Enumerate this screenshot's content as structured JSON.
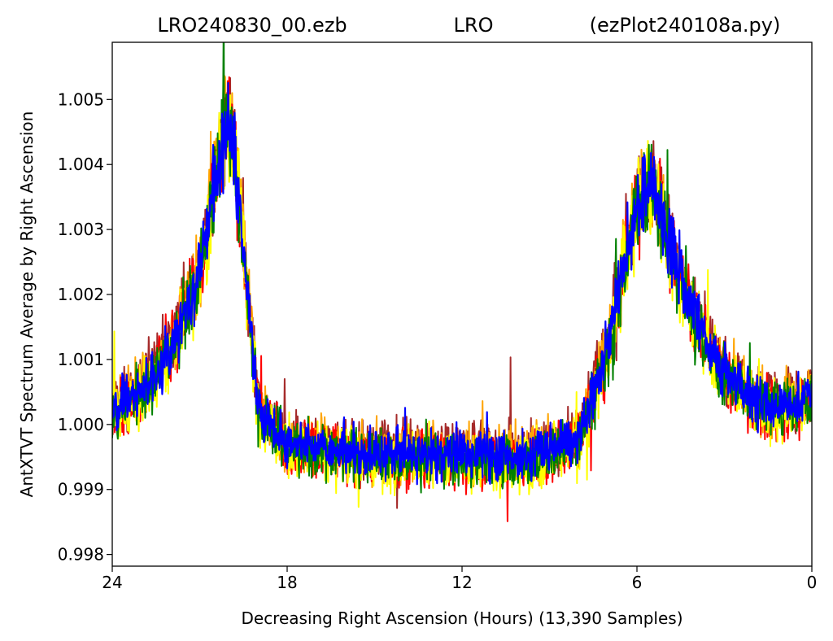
{
  "chart_data": {
    "type": "line",
    "title_parts": [
      "LRO240830_00.ezb",
      "LRO",
      "(ezPlot240108a.py)"
    ],
    "xlabel": "Decreasing Right Ascension (Hours) (13,390 Samples)",
    "ylabel": "AntXTVT Spectrum Average by Right Ascension",
    "xlim": [
      24,
      0
    ],
    "x_reversed": true,
    "ylim": [
      0.99782,
      1.00588
    ],
    "x_ticks": [
      24,
      18,
      12,
      6,
      0
    ],
    "x_tick_labels": [
      "24",
      "18",
      "12",
      "6",
      "0"
    ],
    "y_ticks": [
      0.998,
      0.999,
      1.0,
      1.001,
      1.002,
      1.003,
      1.004,
      1.005
    ],
    "y_tick_labels": [
      "0.998",
      "0.999",
      "1.000",
      "1.001",
      "1.002",
      "1.003",
      "1.004",
      "1.005"
    ],
    "grid": false,
    "legend": "none",
    "series_colors": [
      "#a52a2a",
      "#ffa500",
      "#ff0000",
      "#ffff00",
      "#008000",
      "#0000ff"
    ],
    "series": [
      {
        "color": "#a52a2a",
        "noise": 0.00042,
        "spike_rate": 0.008,
        "offset": 8e-05,
        "seed": 11
      },
      {
        "color": "#ffa500",
        "noise": 0.00042,
        "spike_rate": 0.008,
        "offset": 4e-05,
        "seed": 23
      },
      {
        "color": "#ff0000",
        "noise": 0.00042,
        "spike_rate": 0.008,
        "offset": -8e-05,
        "seed": 37
      },
      {
        "color": "#ffff00",
        "noise": 0.00042,
        "spike_rate": 0.008,
        "offset": -0.00012,
        "seed": 41
      },
      {
        "color": "#008000",
        "noise": 0.00042,
        "spike_rate": 0.01,
        "offset": -6e-05,
        "seed": 53
      },
      {
        "color": "#0000ff",
        "noise": 0.00038,
        "spike_rate": 0.006,
        "offset": 0.0,
        "seed": 67
      }
    ],
    "envelope": [
      {
        "x": 24.0,
        "y": 1.0003
      },
      {
        "x": 23.0,
        "y": 1.0005
      },
      {
        "x": 22.0,
        "y": 1.0012
      },
      {
        "x": 21.0,
        "y": 1.0023
      },
      {
        "x": 20.5,
        "y": 1.0036
      },
      {
        "x": 20.2,
        "y": 1.0045
      },
      {
        "x": 20.0,
        "y": 1.0047
      },
      {
        "x": 19.8,
        "y": 1.0042
      },
      {
        "x": 19.5,
        "y": 1.0028
      },
      {
        "x": 19.2,
        "y": 1.0013
      },
      {
        "x": 19.0,
        "y": 1.0003
      },
      {
        "x": 18.0,
        "y": 0.9997
      },
      {
        "x": 15.0,
        "y": 0.99955
      },
      {
        "x": 12.0,
        "y": 0.99955
      },
      {
        "x": 10.0,
        "y": 0.9995
      },
      {
        "x": 9.0,
        "y": 0.9996
      },
      {
        "x": 8.0,
        "y": 0.9998
      },
      {
        "x": 7.0,
        "y": 1.0012
      },
      {
        "x": 6.5,
        "y": 1.0024
      },
      {
        "x": 6.0,
        "y": 1.0035
      },
      {
        "x": 5.5,
        "y": 1.0037
      },
      {
        "x": 5.0,
        "y": 1.003
      },
      {
        "x": 4.0,
        "y": 1.0016
      },
      {
        "x": 3.0,
        "y": 1.0008
      },
      {
        "x": 2.0,
        "y": 1.0004
      },
      {
        "x": 1.0,
        "y": 1.0003
      },
      {
        "x": 0.0,
        "y": 1.0004
      }
    ]
  }
}
